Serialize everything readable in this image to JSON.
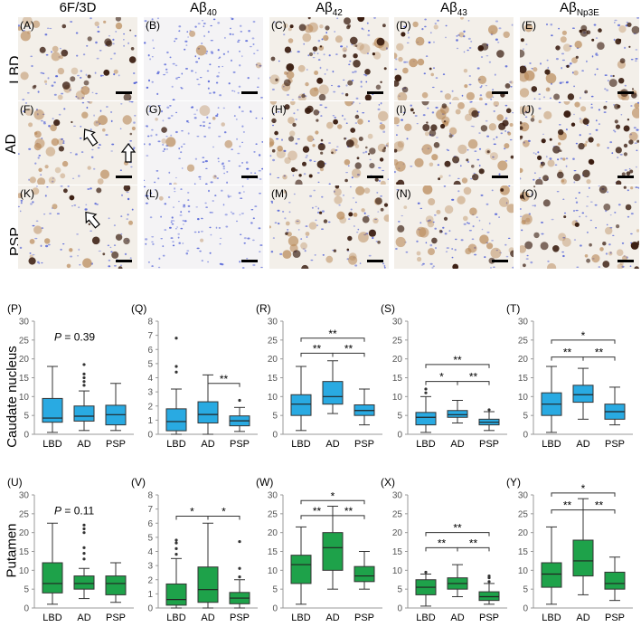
{
  "figure": {
    "columns": [
      {
        "main": "6F/3D",
        "sub": ""
      },
      {
        "main": "Aβ",
        "sub": "40"
      },
      {
        "main": "Aβ",
        "sub": "42"
      },
      {
        "main": "Aβ",
        "sub": "43"
      },
      {
        "main": "Aβ",
        "sub": "Np3E"
      }
    ],
    "rows": [
      "LBD",
      "AD",
      "PSP"
    ],
    "panel_labels": [
      "(A)",
      "(B)",
      "(C)",
      "(D)",
      "(E)",
      "(F)",
      "(G)",
      "(H)",
      "(I)",
      "(J)",
      "(K)",
      "(L)",
      "(M)",
      "(N)",
      "(O)"
    ],
    "y_axis_labels": [
      "Caudate nucleus",
      "Putamen"
    ],
    "colors": {
      "caudate": "#29aae2",
      "putamen": "#1ea24a",
      "stain_dark": "#3a1d10",
      "stain_light": "#b98a5a",
      "nuclei": "#4a5bd6"
    }
  },
  "chart_data": [
    {
      "panel": "(P)",
      "type": "box",
      "region": "Caudate nucleus",
      "categories": [
        "LBD",
        "AD",
        "PSP"
      ],
      "ylim": [
        0,
        30
      ],
      "yticks": [
        0,
        5,
        10,
        15,
        20,
        25,
        30
      ],
      "boxes": [
        {
          "whislo": 0.5,
          "q1": 3.2,
          "med": 4.3,
          "q3": 9.5,
          "whishi": 18,
          "fliers": []
        },
        {
          "whislo": 1,
          "q1": 3.5,
          "med": 4.8,
          "q3": 7.5,
          "whishi": 11.5,
          "fliers": [
            13,
            14,
            15,
            16,
            18.5
          ]
        },
        {
          "whislo": 1,
          "q1": 2.5,
          "med": 5.2,
          "q3": 7.7,
          "whishi": 13.5,
          "fliers": []
        }
      ],
      "annotation": {
        "prefix": "P",
        "text": " = 0.39"
      },
      "sig": []
    },
    {
      "panel": "(Q)",
      "type": "box",
      "region": "Caudate nucleus",
      "categories": [
        "LBD",
        "AD",
        "PSP"
      ],
      "ylim": [
        0,
        8
      ],
      "yticks": [
        0,
        1,
        2,
        3,
        4,
        5,
        6,
        7,
        8
      ],
      "boxes": [
        {
          "whislo": 0,
          "q1": 0.25,
          "med": 0.9,
          "q3": 1.8,
          "whishi": 3.2,
          "fliers": [
            4.4,
            4.8,
            6.8
          ]
        },
        {
          "whislo": 0,
          "q1": 0.8,
          "med": 1.4,
          "q3": 2.3,
          "whishi": 4.2,
          "fliers": []
        },
        {
          "whislo": 0.2,
          "q1": 0.6,
          "med": 0.95,
          "q3": 1.3,
          "whishi": 1.9,
          "fliers": [
            2.4
          ]
        }
      ],
      "annotation": null,
      "sig": [
        {
          "from": 1,
          "to": 2,
          "y": 3.6,
          "label": "**"
        }
      ]
    },
    {
      "panel": "(R)",
      "type": "box",
      "region": "Caudate nucleus",
      "categories": [
        "LBD",
        "AD",
        "PSP"
      ],
      "ylim": [
        0,
        30
      ],
      "yticks": [
        0,
        5,
        10,
        15,
        20,
        25,
        30
      ],
      "boxes": [
        {
          "whislo": 1,
          "q1": 5,
          "med": 8,
          "q3": 10.5,
          "whishi": 18,
          "fliers": []
        },
        {
          "whislo": 5.5,
          "q1": 8,
          "med": 10,
          "q3": 14,
          "whishi": 19.5,
          "fliers": []
        },
        {
          "whislo": 2.5,
          "q1": 5,
          "med": 6.3,
          "q3": 7.8,
          "whishi": 12,
          "fliers": []
        }
      ],
      "annotation": null,
      "sig": [
        {
          "from": 0,
          "to": 1,
          "y": 21.5,
          "label": "**"
        },
        {
          "from": 1,
          "to": 2,
          "y": 21.5,
          "label": "**"
        },
        {
          "from": 0,
          "to": 2,
          "y": 25.5,
          "label": "**"
        }
      ]
    },
    {
      "panel": "(S)",
      "type": "box",
      "region": "Caudate nucleus",
      "categories": [
        "LBD",
        "AD",
        "PSP"
      ],
      "ylim": [
        0,
        30
      ],
      "yticks": [
        0,
        5,
        10,
        15,
        20,
        25,
        30
      ],
      "boxes": [
        {
          "whislo": 0.5,
          "q1": 2.5,
          "med": 4.5,
          "q3": 5.8,
          "whishi": 10,
          "fliers": [
            11,
            12
          ]
        },
        {
          "whislo": 3,
          "q1": 4.5,
          "med": 5.2,
          "q3": 6.3,
          "whishi": 9,
          "fliers": []
        },
        {
          "whislo": 1,
          "q1": 2.5,
          "med": 3.2,
          "q3": 4,
          "whishi": 6,
          "fliers": [
            6.5
          ]
        }
      ],
      "annotation": null,
      "sig": [
        {
          "from": 0,
          "to": 1,
          "y": 14,
          "label": "*"
        },
        {
          "from": 1,
          "to": 2,
          "y": 14,
          "label": "**"
        },
        {
          "from": 0,
          "to": 2,
          "y": 18.5,
          "label": "**"
        }
      ]
    },
    {
      "panel": "(T)",
      "type": "box",
      "region": "Caudate nucleus",
      "categories": [
        "LBD",
        "AD",
        "PSP"
      ],
      "ylim": [
        0,
        30
      ],
      "yticks": [
        0,
        5,
        10,
        15,
        20,
        25,
        30
      ],
      "boxes": [
        {
          "whislo": 0.5,
          "q1": 5,
          "med": 8,
          "q3": 11,
          "whishi": 18,
          "fliers": []
        },
        {
          "whislo": 4,
          "q1": 8.5,
          "med": 10.5,
          "q3": 13,
          "whishi": 17.5,
          "fliers": []
        },
        {
          "whislo": 2.5,
          "q1": 4,
          "med": 6,
          "q3": 8,
          "whishi": 12.5,
          "fliers": []
        }
      ],
      "annotation": null,
      "sig": [
        {
          "from": 0,
          "to": 1,
          "y": 20.5,
          "label": "**"
        },
        {
          "from": 1,
          "to": 2,
          "y": 20.5,
          "label": "**"
        },
        {
          "from": 0,
          "to": 2,
          "y": 25,
          "label": "*"
        }
      ]
    },
    {
      "panel": "(U)",
      "type": "box",
      "region": "Putamen",
      "categories": [
        "LBD",
        "AD",
        "PSP"
      ],
      "ylim": [
        0,
        30
      ],
      "yticks": [
        0,
        5,
        10,
        15,
        20,
        25,
        30
      ],
      "boxes": [
        {
          "whislo": 1,
          "q1": 4,
          "med": 6.5,
          "q3": 12,
          "whishi": 22.5,
          "fliers": []
        },
        {
          "whislo": 2.5,
          "q1": 5,
          "med": 6.5,
          "q3": 8.5,
          "whishi": 10.5,
          "fliers": [
            13,
            14.5,
            16,
            20,
            21,
            22
          ]
        },
        {
          "whislo": 1.5,
          "q1": 3.5,
          "med": 6.5,
          "q3": 8.5,
          "whishi": 12,
          "fliers": []
        }
      ],
      "annotation": {
        "prefix": "P",
        "text": " = 0.11"
      },
      "sig": []
    },
    {
      "panel": "(V)",
      "type": "box",
      "region": "Putamen",
      "categories": [
        "LBD",
        "AD",
        "PSP"
      ],
      "ylim": [
        0,
        8
      ],
      "yticks": [
        0,
        1,
        2,
        3,
        4,
        5,
        6,
        7,
        8
      ],
      "boxes": [
        {
          "whislo": 0,
          "q1": 0.2,
          "med": 0.6,
          "q3": 1.7,
          "whishi": 3.5,
          "fliers": [
            3.8,
            4.2,
            4.6,
            4.8
          ]
        },
        {
          "whislo": 0,
          "q1": 0.4,
          "med": 1.3,
          "q3": 2.9,
          "whishi": 6,
          "fliers": []
        },
        {
          "whislo": 0,
          "q1": 0.3,
          "med": 0.7,
          "q3": 1.1,
          "whishi": 2,
          "fliers": [
            2.2,
            2.8,
            4.7
          ]
        }
      ],
      "annotation": null,
      "sig": [
        {
          "from": 0,
          "to": 1,
          "y": 6.5,
          "label": "*"
        },
        {
          "from": 1,
          "to": 2,
          "y": 6.5,
          "label": "*"
        }
      ]
    },
    {
      "panel": "(W)",
      "type": "box",
      "region": "Putamen",
      "categories": [
        "LBD",
        "AD",
        "PSP"
      ],
      "ylim": [
        0,
        30
      ],
      "yticks": [
        0,
        5,
        10,
        15,
        20,
        25,
        30
      ],
      "boxes": [
        {
          "whislo": 1,
          "q1": 6.5,
          "med": 11.5,
          "q3": 14,
          "whishi": 21.5,
          "fliers": []
        },
        {
          "whislo": 5,
          "q1": 10,
          "med": 16,
          "q3": 20,
          "whishi": 27,
          "fliers": []
        },
        {
          "whislo": 5,
          "q1": 7,
          "med": 8.5,
          "q3": 11,
          "whishi": 15,
          "fliers": []
        }
      ],
      "annotation": null,
      "sig": [
        {
          "from": 0,
          "to": 1,
          "y": 24.5,
          "label": "**"
        },
        {
          "from": 1,
          "to": 2,
          "y": 24.5,
          "label": "**"
        },
        {
          "from": 0,
          "to": 2,
          "y": 28.5,
          "label": "*"
        }
      ]
    },
    {
      "panel": "(X)",
      "type": "box",
      "region": "Putamen",
      "categories": [
        "LBD",
        "AD",
        "PSP"
      ],
      "ylim": [
        0,
        30
      ],
      "yticks": [
        0,
        5,
        10,
        15,
        20,
        25,
        30
      ],
      "boxes": [
        {
          "whislo": 0.5,
          "q1": 3.5,
          "med": 5.5,
          "q3": 7.5,
          "whishi": 9,
          "fliers": [
            9.5
          ]
        },
        {
          "whislo": 3,
          "q1": 5,
          "med": 6.5,
          "q3": 8,
          "whishi": 11.5,
          "fliers": []
        },
        {
          "whislo": 1,
          "q1": 2,
          "med": 3,
          "q3": 4.3,
          "whishi": 6.5,
          "fliers": [
            7,
            8,
            8.5
          ]
        }
      ],
      "annotation": null,
      "sig": [
        {
          "from": 0,
          "to": 1,
          "y": 16,
          "label": "**"
        },
        {
          "from": 1,
          "to": 2,
          "y": 16,
          "label": "**"
        },
        {
          "from": 0,
          "to": 2,
          "y": 20,
          "label": "**"
        }
      ]
    },
    {
      "panel": "(Y)",
      "type": "box",
      "region": "Putamen",
      "categories": [
        "LBD",
        "AD",
        "PSP"
      ],
      "ylim": [
        0,
        30
      ],
      "yticks": [
        0,
        5,
        10,
        15,
        20,
        25,
        30
      ],
      "boxes": [
        {
          "whislo": 1,
          "q1": 5.5,
          "med": 9,
          "q3": 12,
          "whishi": 21.5,
          "fliers": []
        },
        {
          "whislo": 3.5,
          "q1": 8.5,
          "med": 12.5,
          "q3": 18,
          "whishi": 29,
          "fliers": []
        },
        {
          "whislo": 2,
          "q1": 5,
          "med": 6.5,
          "q3": 9.5,
          "whishi": 13.5,
          "fliers": []
        }
      ],
      "annotation": null,
      "sig": [
        {
          "from": 0,
          "to": 1,
          "y": 26,
          "label": "**"
        },
        {
          "from": 1,
          "to": 2,
          "y": 26,
          "label": "**"
        },
        {
          "from": 0,
          "to": 2,
          "y": 30.5,
          "label": "*"
        }
      ]
    }
  ]
}
